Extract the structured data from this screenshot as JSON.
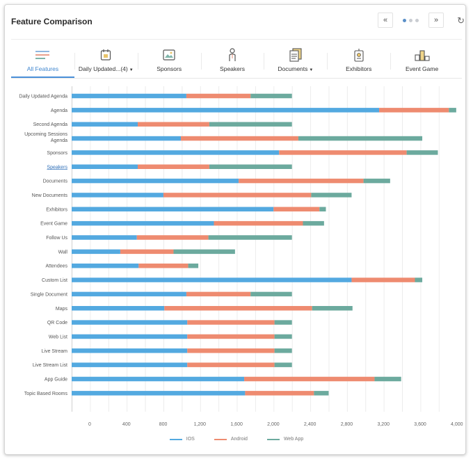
{
  "header": {
    "title": "Feature Comparison",
    "prev_label": "«",
    "next_label": "»",
    "refresh_label": "↻"
  },
  "tabs": [
    {
      "label": "All Features",
      "icon": "lines-icon",
      "active": true,
      "dropdown": false
    },
    {
      "label": "Daily Updated...(4)",
      "icon": "calendar-icon",
      "active": false,
      "dropdown": true
    },
    {
      "label": "Sponsors",
      "icon": "image-icon",
      "active": false,
      "dropdown": false
    },
    {
      "label": "Speakers",
      "icon": "person-icon",
      "active": false,
      "dropdown": false
    },
    {
      "label": "Documents",
      "icon": "documents-icon",
      "active": false,
      "dropdown": true
    },
    {
      "label": "Exhibitors",
      "icon": "badge-icon",
      "active": false,
      "dropdown": false
    },
    {
      "label": "Event Game",
      "icon": "podium-icon",
      "active": false,
      "dropdown": false
    }
  ],
  "colors": {
    "ios": "#53a9e0",
    "android": "#ee8b70",
    "web": "#6caa9e",
    "accent": "#4a90d9"
  },
  "chart_data": {
    "type": "bar",
    "orientation": "horizontal",
    "stacked": true,
    "categories": [
      "Daily Updated Agenda",
      "Agenda",
      "Second Agenda",
      "Upcoming Sessions Agenda",
      "Sponsors",
      "Speakers",
      "Documents",
      "New Documents",
      "Exhibitors",
      "Event Game",
      "Follow Us",
      "Wall",
      "Attendees",
      "Custom List",
      "Single Document",
      "Maps",
      "QR Code",
      "Web List",
      "Live Stream",
      "Live Stream List",
      "App Guide",
      "Topic Based Rooms"
    ],
    "link_category": "Speakers",
    "series": [
      {
        "name": "IOS",
        "values": [
          1250,
          3350,
          720,
          1190,
          2260,
          720,
          1820,
          1000,
          2200,
          1550,
          710,
          530,
          730,
          3050,
          1250,
          1010,
          1260,
          1260,
          1260,
          1260,
          1880,
          1890
        ]
      },
      {
        "name": "Android",
        "values": [
          700,
          760,
          780,
          1280,
          1390,
          780,
          1360,
          1610,
          500,
          970,
          780,
          580,
          540,
          690,
          700,
          1610,
          950,
          950,
          950,
          950,
          1420,
          750
        ]
      },
      {
        "name": "Web App",
        "values": [
          450,
          80,
          900,
          1350,
          340,
          900,
          290,
          440,
          70,
          230,
          910,
          670,
          110,
          80,
          450,
          440,
          190,
          190,
          190,
          190,
          290,
          160
        ]
      }
    ],
    "xlim": [
      0,
      4100
    ],
    "xticks": [
      0,
      400,
      800,
      1200,
      1600,
      2000,
      2400,
      2800,
      3200,
      3600,
      4000
    ],
    "xtick_labels": [
      "0",
      "400",
      "800",
      "1,200",
      "1,600",
      "2,000",
      "2,400",
      "2,800",
      "3,200",
      "3,600",
      "4,000"
    ],
    "grid": true,
    "legend_position": "bottom-center"
  }
}
